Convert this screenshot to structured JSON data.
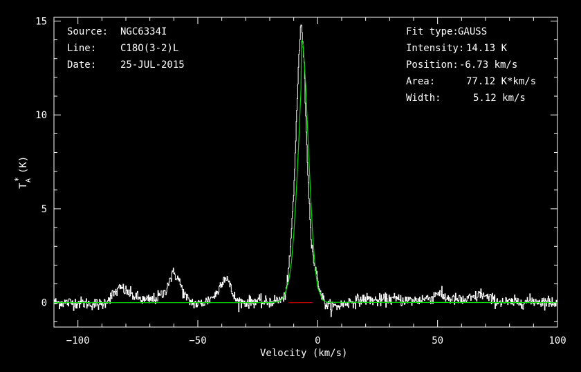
{
  "info_left": {
    "source_key": "Source:",
    "source_val": "NGC6334I",
    "line_key": "Line:",
    "line_val": "C18O(3-2)L",
    "date_key": "Date:",
    "date_val": "25-JUL-2015"
  },
  "info_right": {
    "fit_key": "Fit type:",
    "fit_val": "GAUSS",
    "intensity_key": "Intensity:",
    "intensity_val": "14.13 K",
    "position_key": "Position:",
    "position_val": "-6.73 km/s",
    "area_key": "Area:",
    "area_val": "77.12 K*km/s",
    "width_key": "Width:",
    "width_val": "5.12 km/s"
  },
  "colors": {
    "background": "#000000",
    "spectrum": "#ffffff",
    "fit": "#00dd00",
    "baseline_mark": "#cc0000",
    "axes": "#ffffff"
  },
  "chart_data": {
    "type": "line",
    "xlabel": "Velocity (km/s)",
    "ylabel": "T_A^* (K)",
    "ylabel_main": "T",
    "ylabel_sub": "A",
    "ylabel_sup": "*",
    "ylabel_unit": "(K)",
    "xlim": [
      -110,
      100
    ],
    "ylim": [
      -1.3,
      15.2
    ],
    "x_ticks": [
      -100,
      -50,
      0,
      50,
      100
    ],
    "x_tick_labels": [
      "−100",
      "−50",
      "0",
      "50",
      "100"
    ],
    "y_ticks": [
      0,
      5,
      10,
      15
    ],
    "y_tick_labels": [
      "0",
      "5",
      "10",
      "15"
    ],
    "grid": false,
    "series": [
      {
        "style": "spectrum",
        "x": [
          -110,
          -100,
          -90,
          -84,
          -82,
          -80,
          -76,
          -72,
          -68,
          -64,
          -62,
          -60,
          -58,
          -56,
          -54,
          -50,
          -46,
          -42,
          -40,
          -38,
          -36,
          -34,
          -30,
          -26,
          -22,
          -18,
          -14,
          -12,
          -10,
          -9,
          -8,
          -7,
          -6,
          -5,
          -4,
          -3,
          -2,
          -1,
          0,
          2,
          4,
          8,
          12,
          16,
          20,
          25,
          30,
          40,
          48,
          50,
          52,
          60,
          66,
          68,
          70,
          74,
          80,
          90,
          100
        ],
        "y": [
          0.0,
          0.0,
          -0.1,
          0.6,
          0.8,
          0.6,
          0.3,
          0.1,
          0.2,
          0.5,
          1.2,
          1.6,
          1.2,
          0.5,
          0.1,
          -0.1,
          0.1,
          0.5,
          1.2,
          1.4,
          0.6,
          0.1,
          0.0,
          0.1,
          0.0,
          0.1,
          0.2,
          1.8,
          6.0,
          9.6,
          13.0,
          14.9,
          13.5,
          9.8,
          6.3,
          3.9,
          2.4,
          1.8,
          1.1,
          0.2,
          -0.2,
          -0.2,
          0.0,
          0.1,
          0.2,
          0.1,
          0.2,
          0.1,
          0.3,
          0.6,
          0.3,
          0.1,
          0.3,
          0.5,
          0.3,
          0.1,
          0.0,
          0.1,
          0.0
        ]
      },
      {
        "style": "fit",
        "x": [
          -110,
          -20,
          -16,
          -14,
          -12,
          -11,
          -10,
          -9,
          -8,
          -7,
          -6.73,
          -6,
          -5,
          -4,
          -3,
          -2,
          -1,
          0,
          2,
          4,
          100
        ],
        "y": [
          0.0,
          0.0,
          0.05,
          0.3,
          1.2,
          2.1,
          3.6,
          5.7,
          8.3,
          11.3,
          14.13,
          13.6,
          11.6,
          8.6,
          5.8,
          3.4,
          1.8,
          0.8,
          0.15,
          0.02,
          0.0
        ]
      }
    ]
  }
}
